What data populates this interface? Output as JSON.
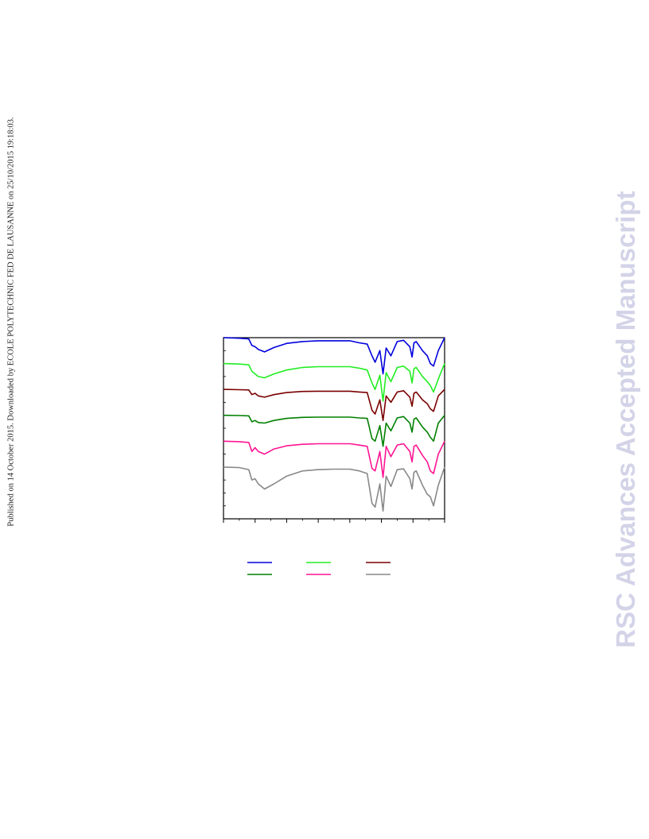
{
  "page": {
    "side_note": "Published on 14 October 2015. Downloaded by ECOLE POLYTECHNIC FED DE LAUSANNE on 25/10/2015 19:18:03.",
    "watermark": "RSC Advances Accepted Manuscript"
  },
  "chart_data": {
    "type": "line",
    "title": "",
    "xlabel": "",
    "ylabel": "",
    "xlim": [
      0,
      7
    ],
    "ylim": [
      0,
      7
    ],
    "x_major_ticks": [
      0,
      1,
      2,
      3,
      4,
      5,
      6,
      7
    ],
    "x_minor_ticks": [
      0.5,
      1.5,
      2.5,
      3.5,
      4.5,
      5.5,
      6.5
    ],
    "y_ticks": [
      0,
      0.5,
      1,
      1.5,
      2,
      2.5,
      3,
      3.5,
      4,
      4.5,
      5,
      5.5,
      6,
      6.5,
      7
    ],
    "grid": false,
    "legend": {
      "placement": "below",
      "columns": 3
    },
    "x": [
      0,
      0.5,
      0.8,
      0.9,
      1.0,
      1.1,
      1.3,
      1.6,
      2.0,
      2.5,
      3.0,
      3.5,
      4.0,
      4.3,
      4.55,
      4.7,
      4.8,
      4.95,
      5.05,
      5.15,
      5.3,
      5.5,
      5.7,
      5.9,
      5.97,
      6.03,
      6.1,
      6.3,
      6.45,
      6.55,
      6.65,
      6.8,
      7.0
    ],
    "series": [
      {
        "name": "",
        "color": "#0000dd",
        "y": [
          7.0,
          6.98,
          6.95,
          6.7,
          6.65,
          6.55,
          6.45,
          6.62,
          6.78,
          6.85,
          6.88,
          6.88,
          6.88,
          6.8,
          6.75,
          6.3,
          6.05,
          6.5,
          5.6,
          6.6,
          6.3,
          6.85,
          6.9,
          6.65,
          6.25,
          6.8,
          6.85,
          6.5,
          6.3,
          6.0,
          5.9,
          6.5,
          7.0
        ]
      },
      {
        "name": "",
        "color": "#22ee22",
        "y": [
          6.0,
          5.98,
          5.95,
          5.7,
          5.6,
          5.5,
          5.45,
          5.6,
          5.75,
          5.85,
          5.88,
          5.88,
          5.88,
          5.82,
          5.75,
          5.25,
          5.0,
          5.55,
          4.55,
          5.65,
          5.3,
          5.85,
          5.9,
          5.7,
          5.25,
          5.8,
          5.85,
          5.5,
          5.3,
          5.15,
          4.9,
          5.4,
          6.0
        ]
      },
      {
        "name": "",
        "color": "#7a0000",
        "y": [
          5.0,
          4.99,
          4.98,
          4.8,
          4.85,
          4.75,
          4.7,
          4.8,
          4.88,
          4.92,
          4.93,
          4.93,
          4.93,
          4.9,
          4.88,
          4.2,
          4.05,
          4.6,
          3.8,
          4.75,
          4.5,
          4.9,
          4.95,
          4.7,
          4.35,
          4.85,
          4.9,
          4.6,
          4.45,
          4.25,
          4.15,
          4.75,
          5.0
        ]
      },
      {
        "name": "",
        "color": "#008000",
        "y": [
          4.0,
          3.99,
          3.98,
          3.75,
          3.8,
          3.72,
          3.7,
          3.8,
          3.88,
          3.92,
          3.93,
          3.93,
          3.93,
          3.9,
          3.88,
          3.1,
          3.0,
          3.6,
          2.8,
          3.7,
          3.4,
          3.9,
          3.95,
          3.7,
          3.35,
          3.85,
          3.9,
          3.55,
          3.35,
          3.15,
          3.0,
          3.7,
          4.0
        ]
      },
      {
        "name": "",
        "color": "#ff1493",
        "y": [
          3.0,
          2.98,
          2.95,
          2.6,
          2.75,
          2.6,
          2.5,
          2.7,
          2.82,
          2.88,
          2.9,
          2.9,
          2.9,
          2.85,
          2.8,
          1.95,
          1.85,
          2.6,
          1.6,
          2.8,
          2.4,
          2.85,
          2.9,
          2.6,
          2.2,
          2.8,
          2.85,
          2.45,
          2.2,
          1.85,
          1.75,
          2.5,
          3.0
        ]
      },
      {
        "name": "",
        "color": "#888888",
        "y": [
          2.0,
          1.98,
          1.9,
          1.5,
          1.55,
          1.35,
          1.15,
          1.35,
          1.65,
          1.85,
          1.9,
          1.92,
          1.92,
          1.85,
          1.75,
          0.6,
          0.45,
          1.35,
          0.3,
          1.65,
          1.25,
          1.9,
          1.93,
          1.55,
          1.15,
          1.8,
          1.85,
          1.3,
          0.95,
          0.85,
          0.5,
          1.3,
          2.0
        ]
      }
    ]
  }
}
